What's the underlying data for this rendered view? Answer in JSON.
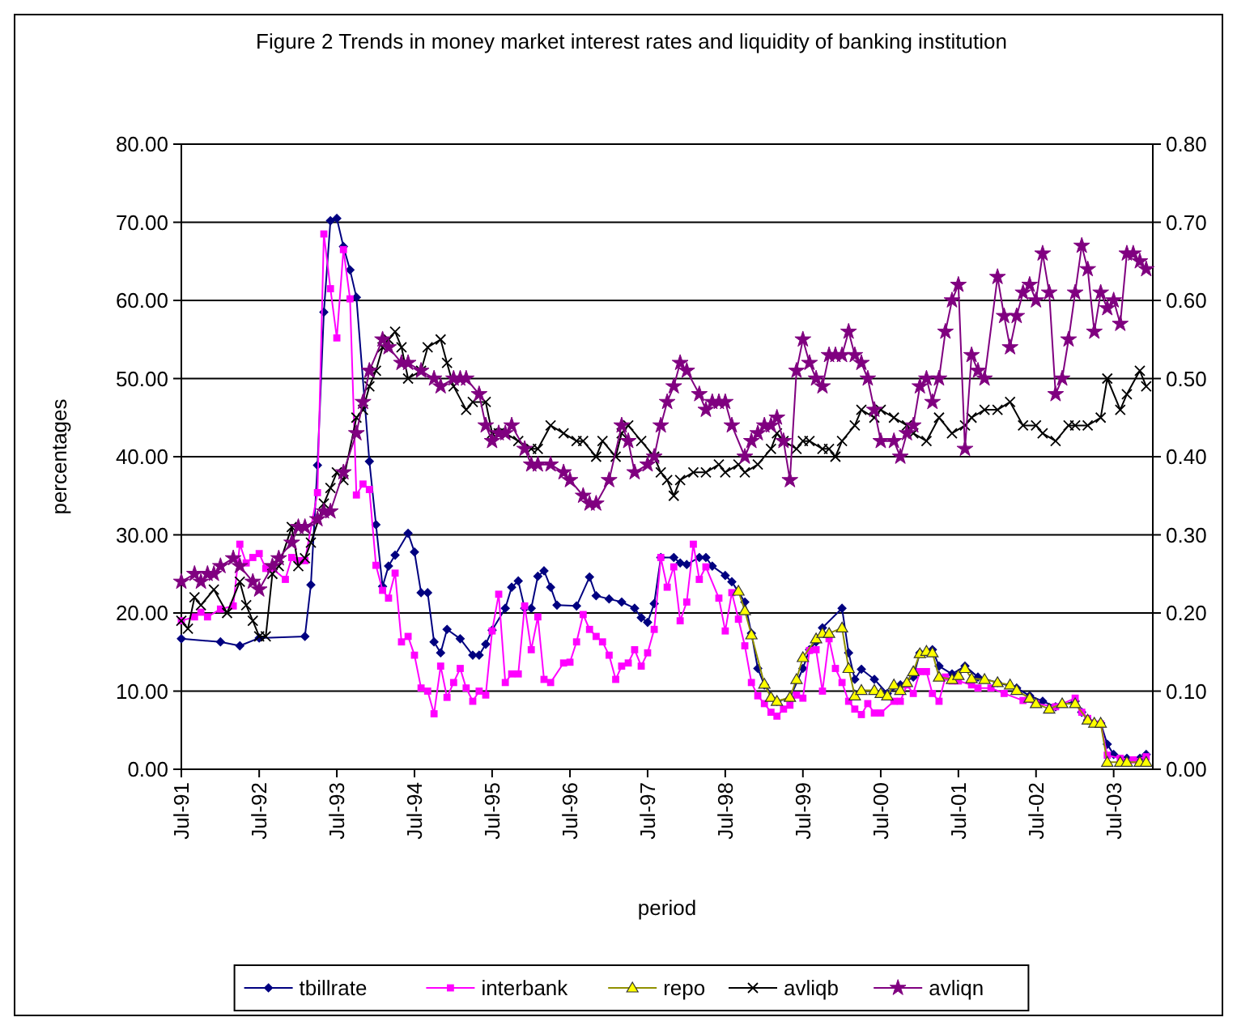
{
  "chart_data": {
    "type": "line",
    "title": "Figure 2 Trends in money market interest rates and liquidity of banking institution",
    "xlabel": "period",
    "ylabel": "percentages",
    "xlim": [
      "1991-07",
      "2004-01"
    ],
    "xticks": [
      {
        "value": "1991-07",
        "label": "Jul-91"
      },
      {
        "value": "1992-07",
        "label": "Jul-92"
      },
      {
        "value": "1993-07",
        "label": "Jul-93"
      },
      {
        "value": "1994-07",
        "label": "Jul-94"
      },
      {
        "value": "1995-07",
        "label": "Jul-95"
      },
      {
        "value": "1996-07",
        "label": "Jul-96"
      },
      {
        "value": "1997-07",
        "label": "Jul-97"
      },
      {
        "value": "1998-07",
        "label": "Jul-98"
      },
      {
        "value": "1999-07",
        "label": "Jul-99"
      },
      {
        "value": "2000-07",
        "label": "Jul-00"
      },
      {
        "value": "2001-07",
        "label": "Jul-01"
      },
      {
        "value": "2002-07",
        "label": "Jul-02"
      },
      {
        "value": "2003-07",
        "label": "Jul-03"
      }
    ],
    "ylim": [
      0,
      80
    ],
    "yticks": [
      {
        "value": 0,
        "label": "0.00"
      },
      {
        "value": 10,
        "label": "10.00"
      },
      {
        "value": 20,
        "label": "20.00"
      },
      {
        "value": 30,
        "label": "30.00"
      },
      {
        "value": 40,
        "label": "40.00"
      },
      {
        "value": 50,
        "label": "50.00"
      },
      {
        "value": 60,
        "label": "60.00"
      },
      {
        "value": 70,
        "label": "70.00"
      },
      {
        "value": 80,
        "label": "80.00"
      }
    ],
    "y2lim": [
      0,
      0.8
    ],
    "y2ticks": [
      {
        "value": 0,
        "label": "0.00"
      },
      {
        "value": 0.1,
        "label": "0.10"
      },
      {
        "value": 0.2,
        "label": "0.20"
      },
      {
        "value": 0.3,
        "label": "0.30"
      },
      {
        "value": 0.4,
        "label": "0.40"
      },
      {
        "value": 0.5,
        "label": "0.50"
      },
      {
        "value": 0.6,
        "label": "0.60"
      },
      {
        "value": 0.7,
        "label": "0.70"
      },
      {
        "value": 0.8,
        "label": "0.80"
      }
    ],
    "grid": "y",
    "legend": "bottom",
    "series": [
      {
        "name": "tbillrate",
        "color": "#000080",
        "marker": "diamond",
        "x": [
          "1991-07",
          "1992-01",
          "1992-04",
          "1992-07",
          "1993-02",
          "1993-03",
          "1993-04",
          "1993-05",
          "1993-06",
          "1993-07",
          "1993-08",
          "1993-09",
          "1993-10",
          "1993-12",
          "1994-01",
          "1994-02",
          "1994-03",
          "1994-04",
          "1994-06",
          "1994-07",
          "1994-08",
          "1994-09",
          "1994-10",
          "1994-11",
          "1994-12",
          "1995-02",
          "1995-04",
          "1995-05",
          "1995-06",
          "1995-07",
          "1995-09",
          "1995-10",
          "1995-11",
          "1995-12",
          "1996-01",
          "1996-02",
          "1996-03",
          "1996-04",
          "1996-05",
          "1996-08",
          "1996-10",
          "1996-11",
          "1997-01",
          "1997-03",
          "1997-05",
          "1997-06",
          "1997-07",
          "1997-08",
          "1997-09",
          "1997-11",
          "1997-12",
          "1998-01",
          "1998-03",
          "1998-04",
          "1998-05",
          "1998-07",
          "1998-08",
          "1998-10",
          "1998-11",
          "1998-12",
          "1999-01",
          "1999-03",
          "1999-05",
          "1999-07",
          "1999-08",
          "1999-09",
          "1999-10",
          "2000-01",
          "2000-02",
          "2000-03",
          "2000-04",
          "2000-06",
          "2000-08",
          "2000-10",
          "2000-12",
          "2001-01",
          "2001-03",
          "2001-04",
          "2001-06",
          "2001-08",
          "2001-10",
          "2002-01",
          "2002-04",
          "2002-06",
          "2002-08",
          "2002-10",
          "2003-01",
          "2003-02",
          "2003-03",
          "2003-05",
          "2003-06",
          "2003-07",
          "2003-09",
          "2003-11",
          "2003-12"
        ],
        "values": [
          16.7,
          16.3,
          15.8,
          16.8,
          17.0,
          23.6,
          38.9,
          58.5,
          70.2,
          70.5,
          66.9,
          63.9,
          60.4,
          39.4,
          31.3,
          23.4,
          26.0,
          27.4,
          30.2,
          27.8,
          22.6,
          22.6,
          16.3,
          14.9,
          17.9,
          16.7,
          14.6,
          14.6,
          16.0,
          17.8,
          20.6,
          23.3,
          24.1,
          20.6,
          20.6,
          24.7,
          25.4,
          23.3,
          21.0,
          20.9,
          24.6,
          22.2,
          21.8,
          21.4,
          20.6,
          19.4,
          18.8,
          21.2,
          27.1,
          27.1,
          26.4,
          26.2,
          27.1,
          27.1,
          26.0,
          24.8,
          24.0,
          21.4,
          17.4,
          12.9,
          10.8,
          8.7,
          9.1,
          12.9,
          15.3,
          16.3,
          18.1,
          20.6,
          14.9,
          11.5,
          12.8,
          11.5,
          9.7,
          10.8,
          11.8,
          14.9,
          15.3,
          13.2,
          12.2,
          13.2,
          11.8,
          11.1,
          10.4,
          9.4,
          8.7,
          8.0,
          8.7,
          7.3,
          6.3,
          5.9,
          3.2,
          1.9,
          1.4,
          1.4,
          1.9
        ]
      },
      {
        "name": "interbank",
        "color": "#ff00ff",
        "marker": "square",
        "x": [
          "1991-07",
          "1991-09",
          "1991-10",
          "1991-11",
          "1992-01",
          "1992-03",
          "1992-04",
          "1992-05",
          "1992-06",
          "1992-07",
          "1992-08",
          "1992-09",
          "1992-11",
          "1992-12",
          "1993-01",
          "1993-02",
          "1993-04",
          "1993-05",
          "1993-06",
          "1993-07",
          "1993-08",
          "1993-09",
          "1993-10",
          "1993-11",
          "1993-12",
          "1994-01",
          "1994-02",
          "1994-03",
          "1994-04",
          "1994-05",
          "1994-06",
          "1994-07",
          "1994-08",
          "1994-09",
          "1994-10",
          "1994-11",
          "1994-12",
          "1995-01",
          "1995-02",
          "1995-03",
          "1995-04",
          "1995-05",
          "1995-06",
          "1995-07",
          "1995-08",
          "1995-09",
          "1995-10",
          "1995-11",
          "1995-12",
          "1996-01",
          "1996-02",
          "1996-03",
          "1996-04",
          "1996-06",
          "1996-07",
          "1996-08",
          "1996-09",
          "1996-10",
          "1996-11",
          "1996-12",
          "1997-01",
          "1997-02",
          "1997-03",
          "1997-04",
          "1997-05",
          "1997-06",
          "1997-07",
          "1997-08",
          "1997-09",
          "1997-10",
          "1997-11",
          "1997-12",
          "1998-01",
          "1998-02",
          "1998-03",
          "1998-04",
          "1998-06",
          "1998-07",
          "1998-08",
          "1998-09",
          "1998-10",
          "1998-11",
          "1998-12",
          "1999-01",
          "1999-02",
          "1999-03",
          "1999-04",
          "1999-05",
          "1999-06",
          "1999-07",
          "1999-08",
          "1999-09",
          "1999-10",
          "1999-11",
          "1999-12",
          "2000-01",
          "2000-02",
          "2000-03",
          "2000-04",
          "2000-05",
          "2000-06",
          "2000-07",
          "2000-09",
          "2000-10",
          "2000-11",
          "2000-12",
          "2001-01",
          "2001-02",
          "2001-03",
          "2001-04",
          "2001-05",
          "2001-06",
          "2001-07",
          "2001-09",
          "2001-10",
          "2001-12",
          "2002-02",
          "2002-05",
          "2002-07",
          "2002-10",
          "2003-01",
          "2003-02",
          "2003-03",
          "2003-05",
          "2003-06",
          "2003-08",
          "2003-10",
          "2003-12"
        ],
        "values": [
          19.0,
          19.5,
          20.1,
          19.5,
          20.5,
          20.9,
          28.8,
          26.4,
          27.1,
          27.6,
          25.7,
          25.7,
          24.3,
          27.1,
          26.7,
          26.7,
          35.4,
          68.5,
          61.5,
          55.2,
          66.5,
          60.2,
          35.1,
          36.5,
          35.8,
          26.1,
          22.9,
          21.9,
          25.1,
          16.3,
          17.0,
          14.6,
          10.4,
          10.0,
          7.1,
          13.2,
          9.2,
          11.1,
          12.9,
          10.4,
          8.7,
          10.0,
          9.5,
          17.7,
          22.4,
          11.1,
          12.2,
          12.2,
          20.9,
          15.3,
          19.5,
          11.5,
          11.1,
          13.6,
          13.7,
          16.3,
          19.8,
          17.9,
          17.0,
          16.3,
          14.6,
          11.5,
          13.2,
          13.6,
          15.3,
          13.2,
          14.9,
          17.9,
          27.1,
          23.3,
          25.9,
          19.0,
          21.4,
          28.8,
          24.3,
          25.9,
          21.9,
          17.7,
          22.6,
          19.2,
          15.8,
          11.1,
          9.4,
          8.4,
          7.3,
          6.8,
          7.7,
          8.2,
          9.5,
          9.1,
          15.2,
          15.3,
          10.0,
          16.7,
          12.9,
          11.1,
          8.7,
          7.7,
          7.0,
          8.4,
          7.2,
          7.2,
          8.7,
          8.7,
          10.8,
          9.7,
          12.5,
          12.5,
          9.7,
          8.7,
          11.8,
          11.3,
          11.3,
          10.8,
          10.4,
          10.4,
          9.7,
          8.8,
          8.4,
          8.0,
          9.1,
          7.3,
          6.5,
          5.8,
          1.8,
          1.4,
          1.2,
          1.6
        ]
      },
      {
        "name": "repo",
        "color": "#ffff00",
        "marker": "triangle",
        "x": [
          "1998-09",
          "1998-10",
          "1998-11",
          "1999-01",
          "1999-02",
          "1999-03",
          "1999-05",
          "1999-06",
          "1999-07",
          "1999-09",
          "1999-10",
          "1999-11",
          "2000-01",
          "2000-02",
          "2000-03",
          "2000-04",
          "2000-06",
          "2000-07",
          "2000-08",
          "2000-09",
          "2000-10",
          "2000-11",
          "2000-12",
          "2001-01",
          "2001-02",
          "2001-03",
          "2001-04",
          "2001-06",
          "2001-07",
          "2001-08",
          "2001-09",
          "2001-11",
          "2002-01",
          "2002-03",
          "2002-04",
          "2002-06",
          "2002-07",
          "2002-09",
          "2002-11",
          "2003-01",
          "2003-03",
          "2003-04",
          "2003-05",
          "2003-06",
          "2003-08",
          "2003-09",
          "2003-11",
          "2003-12"
        ],
        "values": [
          22.8,
          20.3,
          17.2,
          10.9,
          9.2,
          8.7,
          9.2,
          11.5,
          14.3,
          16.7,
          17.4,
          17.4,
          18.1,
          12.9,
          9.4,
          10.1,
          10.1,
          9.7,
          9.4,
          10.8,
          10.1,
          11.1,
          12.5,
          14.8,
          15.1,
          14.9,
          11.8,
          11.5,
          12.0,
          12.9,
          11.6,
          11.5,
          11.1,
          10.8,
          10.1,
          9.1,
          8.4,
          7.7,
          8.4,
          8.4,
          6.3,
          5.9,
          5.9,
          0.9,
          0.9,
          0.9,
          0.9,
          0.9
        ]
      },
      {
        "name": "avliqb",
        "color": "#000000",
        "marker": "cross",
        "axis": "y2",
        "x": [
          "1991-07",
          "1991-08",
          "1991-09",
          "1991-10",
          "1991-12",
          "1992-02",
          "1992-04",
          "1992-05",
          "1992-06",
          "1992-07",
          "1992-08",
          "1992-09",
          "1992-10",
          "1992-12",
          "1993-01",
          "1993-02",
          "1993-03",
          "1993-05",
          "1993-06",
          "1993-07",
          "1993-08",
          "1993-10",
          "1993-11",
          "1993-12",
          "1994-01",
          "1994-02",
          "1994-03",
          "1994-04",
          "1994-05",
          "1994-06",
          "1994-08",
          "1994-09",
          "1994-11",
          "1994-12",
          "1995-01",
          "1995-03",
          "1995-04",
          "1995-06",
          "1995-07",
          "1995-08",
          "1995-09",
          "1995-11",
          "1996-01",
          "1996-02",
          "1996-04",
          "1996-06",
          "1996-08",
          "1996-09",
          "1996-11",
          "1996-12",
          "1997-02",
          "1997-03",
          "1997-04",
          "1997-06",
          "1997-08",
          "1997-09",
          "1997-10",
          "1997-11",
          "1997-12",
          "1998-02",
          "1998-04",
          "1998-06",
          "1998-07",
          "1998-09",
          "1998-10",
          "1998-12",
          "1999-02",
          "1999-03",
          "1999-04",
          "1999-06",
          "1999-07",
          "1999-08",
          "1999-10",
          "1999-11",
          "1999-12",
          "2000-01",
          "2000-03",
          "2000-04",
          "2000-06",
          "2000-07",
          "2000-09",
          "2000-11",
          "2000-12",
          "2001-02",
          "2001-04",
          "2001-06",
          "2001-08",
          "2001-09",
          "2001-11",
          "2002-01",
          "2002-03",
          "2002-05",
          "2002-07",
          "2002-08",
          "2002-10",
          "2002-12",
          "2003-01",
          "2003-03",
          "2003-05",
          "2003-06",
          "2003-08",
          "2003-09",
          "2003-11",
          "2003-12"
        ],
        "values": [
          0.19,
          0.18,
          0.22,
          0.21,
          0.23,
          0.2,
          0.24,
          0.21,
          0.19,
          0.17,
          0.17,
          0.25,
          0.26,
          0.31,
          0.26,
          0.27,
          0.29,
          0.34,
          0.36,
          0.38,
          0.37,
          0.45,
          0.46,
          0.49,
          0.51,
          0.54,
          0.55,
          0.56,
          0.54,
          0.5,
          0.51,
          0.54,
          0.55,
          0.52,
          0.49,
          0.46,
          0.47,
          0.47,
          0.43,
          0.43,
          0.43,
          0.42,
          0.41,
          0.41,
          0.44,
          0.43,
          0.42,
          0.42,
          0.4,
          0.42,
          0.4,
          0.43,
          0.44,
          0.42,
          0.4,
          0.38,
          0.37,
          0.35,
          0.37,
          0.38,
          0.38,
          0.39,
          0.38,
          0.39,
          0.38,
          0.39,
          0.41,
          0.43,
          0.42,
          0.41,
          0.42,
          0.42,
          0.41,
          0.41,
          0.4,
          0.42,
          0.44,
          0.46,
          0.45,
          0.46,
          0.45,
          0.44,
          0.43,
          0.42,
          0.45,
          0.43,
          0.44,
          0.45,
          0.46,
          0.46,
          0.47,
          0.44,
          0.44,
          0.43,
          0.42,
          0.44,
          0.44,
          0.44,
          0.45,
          0.5,
          0.46,
          0.48,
          0.51,
          0.49
        ]
      },
      {
        "name": "avliqn",
        "color": "#800080",
        "marker": "star",
        "axis": "y2",
        "x": [
          "1991-07",
          "1991-09",
          "1991-10",
          "1991-11",
          "1991-12",
          "1992-01",
          "1992-03",
          "1992-04",
          "1992-06",
          "1992-07",
          "1992-09",
          "1992-10",
          "1992-12",
          "1993-01",
          "1993-02",
          "1993-04",
          "1993-05",
          "1993-06",
          "1993-08",
          "1993-10",
          "1993-11",
          "1993-12",
          "1994-02",
          "1994-03",
          "1994-05",
          "1994-06",
          "1994-08",
          "1994-10",
          "1994-11",
          "1995-01",
          "1995-02",
          "1995-03",
          "1995-05",
          "1995-06",
          "1995-07",
          "1995-08",
          "1995-09",
          "1995-10",
          "1995-12",
          "1996-01",
          "1996-02",
          "1996-04",
          "1996-06",
          "1996-07",
          "1996-09",
          "1996-10",
          "1996-11",
          "1997-01",
          "1997-03",
          "1997-04",
          "1997-05",
          "1997-07",
          "1997-08",
          "1997-09",
          "1997-10",
          "1997-11",
          "1997-12",
          "1998-01",
          "1998-03",
          "1998-04",
          "1998-05",
          "1998-06",
          "1998-07",
          "1998-08",
          "1998-10",
          "1998-11",
          "1998-12",
          "1999-01",
          "1999-02",
          "1999-03",
          "1999-04",
          "1999-05",
          "1999-06",
          "1999-07",
          "1999-08",
          "1999-09",
          "1999-10",
          "1999-11",
          "1999-12",
          "2000-01",
          "2000-02",
          "2000-03",
          "2000-04",
          "2000-05",
          "2000-06",
          "2000-07",
          "2000-09",
          "2000-10",
          "2000-11",
          "2000-12",
          "2001-01",
          "2001-02",
          "2001-03",
          "2001-04",
          "2001-05",
          "2001-06",
          "2001-07",
          "2001-08",
          "2001-09",
          "2001-10",
          "2001-11",
          "2002-01",
          "2002-02",
          "2002-03",
          "2002-04",
          "2002-05",
          "2002-06",
          "2002-07",
          "2002-08",
          "2002-09",
          "2002-10",
          "2002-11",
          "2002-12",
          "2003-01",
          "2003-02",
          "2003-03",
          "2003-04",
          "2003-05",
          "2003-06",
          "2003-07",
          "2003-08",
          "2003-09",
          "2003-10",
          "2003-11",
          "2003-12"
        ],
        "values": [
          0.24,
          0.25,
          0.24,
          0.25,
          0.25,
          0.26,
          0.27,
          0.26,
          0.24,
          0.23,
          0.26,
          0.27,
          0.29,
          0.31,
          0.31,
          0.32,
          0.33,
          0.33,
          0.38,
          0.43,
          0.47,
          0.51,
          0.55,
          0.54,
          0.52,
          0.52,
          0.51,
          0.5,
          0.49,
          0.5,
          0.5,
          0.5,
          0.48,
          0.44,
          0.42,
          0.43,
          0.43,
          0.44,
          0.41,
          0.39,
          0.39,
          0.39,
          0.38,
          0.37,
          0.35,
          0.34,
          0.34,
          0.37,
          0.44,
          0.42,
          0.38,
          0.39,
          0.4,
          0.44,
          0.47,
          0.49,
          0.52,
          0.51,
          0.48,
          0.46,
          0.47,
          0.47,
          0.47,
          0.44,
          0.4,
          0.42,
          0.43,
          0.44,
          0.44,
          0.45,
          0.42,
          0.37,
          0.51,
          0.55,
          0.52,
          0.5,
          0.49,
          0.53,
          0.53,
          0.53,
          0.56,
          0.53,
          0.52,
          0.5,
          0.46,
          0.42,
          0.42,
          0.4,
          0.43,
          0.44,
          0.49,
          0.5,
          0.47,
          0.5,
          0.56,
          0.6,
          0.62,
          0.41,
          0.53,
          0.51,
          0.5,
          0.63,
          0.58,
          0.54,
          0.58,
          0.61,
          0.62,
          0.6,
          0.66,
          0.61,
          0.48,
          0.5,
          0.55,
          0.61,
          0.67,
          0.64,
          0.56,
          0.61,
          0.59,
          0.6,
          0.57,
          0.66,
          0.66,
          0.65,
          0.64
        ]
      }
    ]
  }
}
